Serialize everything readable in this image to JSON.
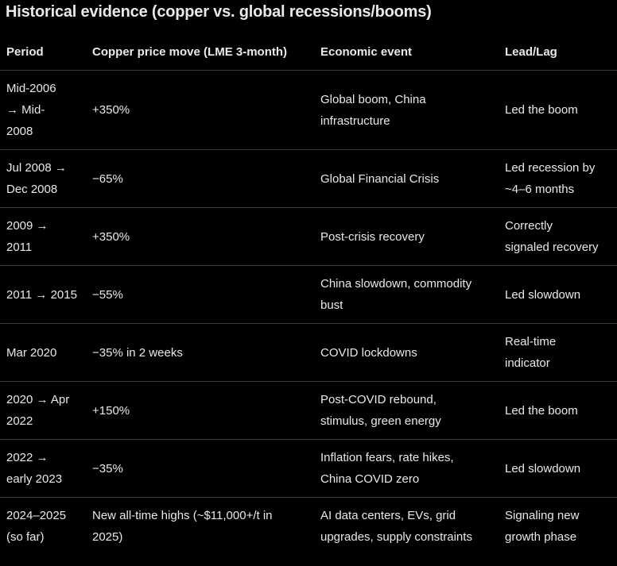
{
  "title": "Historical evidence (copper vs. global recessions/booms)",
  "columns": [
    "Period",
    "Copper price move (LME 3-month)",
    "Economic event",
    "Lead/Lag"
  ],
  "rows": [
    [
      "Mid-2006\n→ Mid-\n2008",
      "+350%",
      "Global boom, China\ninfrastructure",
      "Led the boom"
    ],
    [
      "Jul 2008 →\nDec 2008",
      "−65%",
      "Global Financial Crisis",
      "Led recession by\n~4–6 months"
    ],
    [
      "2009 →\n2011",
      "+350%",
      "Post-crisis recovery",
      "Correctly\nsignaled recovery"
    ],
    [
      "2011 → 2015",
      "−55%",
      "China slowdown, commodity\nbust",
      "Led slowdown"
    ],
    [
      "Mar 2020",
      "−35% in 2 weeks",
      "COVID lockdowns",
      "Real-time\nindicator"
    ],
    [
      "2020 → Apr\n2022",
      "+150%",
      "Post-COVID rebound,\nstimulus, green energy",
      "Led the boom"
    ],
    [
      "2022 →\nearly 2023",
      "−35%",
      "Inflation fears, rate hikes,\nChina COVID zero",
      "Led slowdown"
    ],
    [
      "2024–2025\n(so far)",
      "New all-time highs (~$11,000+/t in\n2025)",
      "AI data centers, EVs, grid\nupgrades, supply constraints",
      "Signaling new\ngrowth phase"
    ]
  ]
}
